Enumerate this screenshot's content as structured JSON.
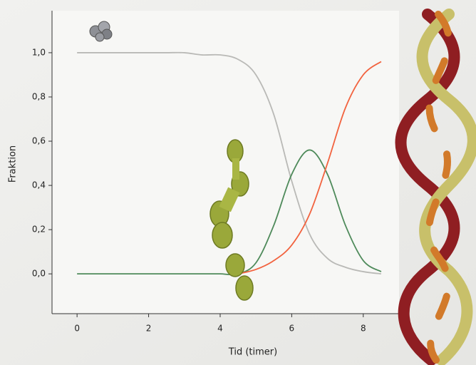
{
  "chart_data": {
    "type": "line",
    "xlabel": "Tid (timer)",
    "ylabel": "Fraktion",
    "x": [
      0,
      0.5,
      1,
      1.5,
      2,
      2.5,
      3,
      3.5,
      4,
      4.5,
      5,
      5.5,
      6,
      6.5,
      7,
      7.5,
      8,
      8.5
    ],
    "series": [
      {
        "color": "#b9b9b6",
        "values": [
          1.0,
          1.0,
          1.0,
          1.0,
          1.0,
          1.0,
          1.0,
          0.99,
          0.99,
          0.97,
          0.9,
          0.72,
          0.42,
          0.18,
          0.07,
          0.03,
          0.01,
          0.0
        ]
      },
      {
        "color": "#4e8a5a",
        "values": [
          0.0,
          0.0,
          0.0,
          0.0,
          0.0,
          0.0,
          0.0,
          0.0,
          0.0,
          0.0,
          0.05,
          0.22,
          0.45,
          0.56,
          0.45,
          0.22,
          0.06,
          0.01
        ]
      },
      {
        "color": "#f2633f",
        "values": [
          null,
          null,
          null,
          null,
          null,
          null,
          null,
          null,
          null,
          0.0,
          0.02,
          0.06,
          0.13,
          0.27,
          0.5,
          0.75,
          0.9,
          0.96
        ]
      }
    ],
    "xlim": [
      -0.7,
      9
    ],
    "ylim": [
      -0.18,
      1.19
    ],
    "xticks": [
      0,
      2,
      4,
      6,
      8
    ],
    "yticks": [
      {
        "value": 0,
        "label": "0,0"
      },
      {
        "value": 0.2,
        "label": "0,2"
      },
      {
        "value": 0.4,
        "label": "0,4"
      },
      {
        "value": 0.6,
        "label": "0,6"
      },
      {
        "value": 0.8,
        "label": "0,8"
      },
      {
        "value": 1.0,
        "label": "1,0"
      }
    ]
  }
}
